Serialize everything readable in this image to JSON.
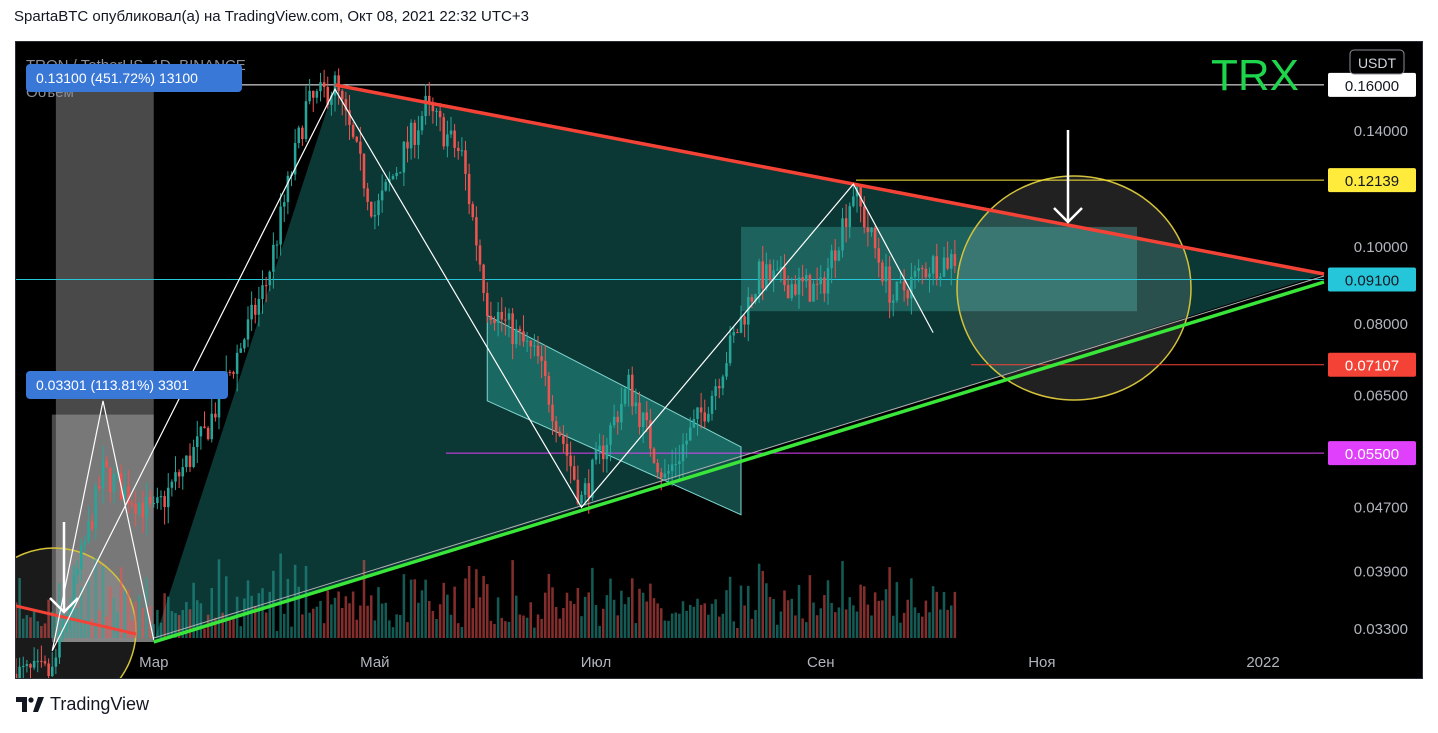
{
  "header": {
    "publisher_line": "SpartaBTC опубликовал(а) на TradingView.com, Окт 08, 2021 22:32 UTC+3"
  },
  "brand": {
    "name": "TradingView",
    "logo_icon": "tradingview-logo-icon"
  },
  "symbol": {
    "title": "TRON / TetherUS, 1D, BINANCE",
    "volume_label": "Объём",
    "big_label": "TRX",
    "currency_badge": "USDT"
  },
  "colors": {
    "background": "#000000",
    "up_candle": "#26a69a",
    "down_candle": "#ef5350",
    "triangle_fill": "#0f4a46",
    "upper_trendline": "#f44336",
    "lower_trendline": "#39e639",
    "circle_outline": "#d4c23a",
    "label_blue": "#3a78d8",
    "brand_text": "#1dd64c"
  },
  "measures": [
    {
      "text": "0.13100 (451.72%) 13100"
    },
    {
      "text": "0.03301 (113.81%) 3301"
    }
  ],
  "chart_data": {
    "type": "candlestick",
    "title": "TRON / TetherUS, 1D, BINANCE",
    "x_ticks": [
      "Мар",
      "Май",
      "Июл",
      "Сен",
      "Ноя",
      "2022"
    ],
    "y_ticks": [
      "0.03300",
      "0.03900",
      "0.04700",
      "0.06500",
      "0.08000",
      "0.10000",
      "0.14000"
    ],
    "y_scale": "log",
    "price_labels": [
      {
        "value": "0.16000",
        "color": "#ffffff",
        "text_color": "#131722"
      },
      {
        "value": "0.12139",
        "color": "#ffeb3b",
        "text_color": "#131722"
      },
      {
        "value": "0.09100",
        "color": "#26c6da",
        "text_color": "#131722"
      },
      {
        "value": "0.07107",
        "color": "#f44336",
        "text_color": "#ffffff"
      },
      {
        "value": "0.05500",
        "color": "#e040fb",
        "text_color": "#ffffff"
      }
    ],
    "anchor_points": [
      {
        "date": "2021-02-01",
        "close": 0.029
      },
      {
        "date": "2021-02-15",
        "close": 0.052
      },
      {
        "date": "2021-03-01",
        "close": 0.046
      },
      {
        "date": "2021-03-15",
        "close": 0.058
      },
      {
        "date": "2021-04-01",
        "close": 0.09
      },
      {
        "date": "2021-04-12",
        "close": 0.15
      },
      {
        "date": "2021-04-20",
        "close": 0.16
      },
      {
        "date": "2021-05-01",
        "close": 0.11
      },
      {
        "date": "2021-05-15",
        "close": 0.15
      },
      {
        "date": "2021-05-25",
        "close": 0.13
      },
      {
        "date": "2021-06-01",
        "close": 0.085
      },
      {
        "date": "2021-06-15",
        "close": 0.072
      },
      {
        "date": "2021-06-27",
        "close": 0.048
      },
      {
        "date": "2021-07-10",
        "close": 0.067
      },
      {
        "date": "2021-07-20",
        "close": 0.051
      },
      {
        "date": "2021-08-01",
        "close": 0.064
      },
      {
        "date": "2021-08-15",
        "close": 0.092
      },
      {
        "date": "2021-09-01",
        "close": 0.088
      },
      {
        "date": "2021-09-10",
        "close": 0.118
      },
      {
        "date": "2021-09-21",
        "close": 0.086
      },
      {
        "date": "2021-10-01",
        "close": 0.095
      },
      {
        "date": "2021-10-08",
        "close": 0.097
      }
    ]
  }
}
